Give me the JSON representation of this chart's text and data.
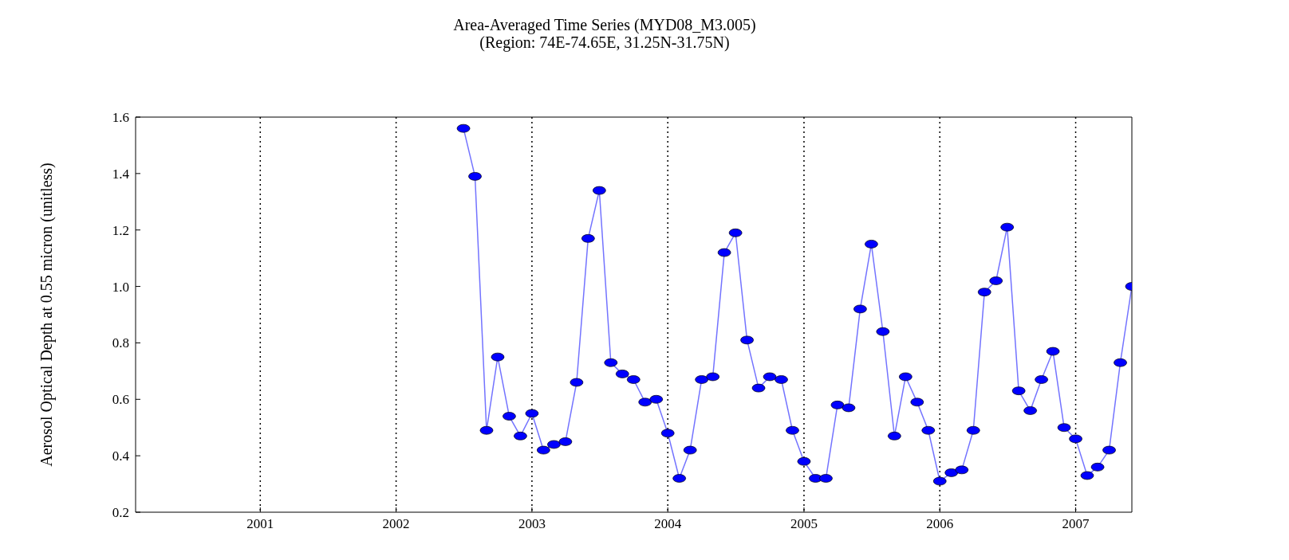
{
  "chart_data": {
    "type": "line",
    "title": "Area-Averaged Time Series (MYD08_M3.005)",
    "subtitle": "(Region: 74E-74.65E, 31.25N-31.75N)",
    "ylabel": "Aerosol Optical Depth at 0.55 micron  (unitless)",
    "x": [
      "2002-07",
      "2002-08",
      "2002-09",
      "2002-10",
      "2002-11",
      "2002-12",
      "2003-01",
      "2003-02",
      "2003-03",
      "2003-04",
      "2003-05",
      "2003-06",
      "2003-07",
      "2003-08",
      "2003-09",
      "2003-10",
      "2003-11",
      "2003-12",
      "2004-01",
      "2004-02",
      "2004-03",
      "2004-04",
      "2004-05",
      "2004-06",
      "2004-07",
      "2004-08",
      "2004-09",
      "2004-10",
      "2004-11",
      "2004-12",
      "2005-01",
      "2005-02",
      "2005-03",
      "2005-04",
      "2005-05",
      "2005-06",
      "2005-07",
      "2005-08",
      "2005-09",
      "2005-10",
      "2005-11",
      "2005-12",
      "2006-01",
      "2006-02",
      "2006-03",
      "2006-04",
      "2006-05",
      "2006-06",
      "2006-07",
      "2006-08",
      "2006-09",
      "2006-10",
      "2006-11",
      "2006-12",
      "2007-01",
      "2007-02",
      "2007-03",
      "2007-04",
      "2007-05",
      "2007-06"
    ],
    "series": [
      {
        "color": "#0000ff",
        "values": [
          1.56,
          1.39,
          0.49,
          0.75,
          0.54,
          0.47,
          0.55,
          0.42,
          0.44,
          0.45,
          0.66,
          1.17,
          1.34,
          0.73,
          0.69,
          0.67,
          0.59,
          0.6,
          0.48,
          0.32,
          0.42,
          0.67,
          0.68,
          1.12,
          1.19,
          0.81,
          0.64,
          0.68,
          0.67,
          0.49,
          0.38,
          0.32,
          0.32,
          0.58,
          0.57,
          0.92,
          1.15,
          0.84,
          0.47,
          0.68,
          0.59,
          0.49,
          0.31,
          0.34,
          0.35,
          0.49,
          0.98,
          1.02,
          1.21,
          0.63,
          0.56,
          0.67,
          0.77,
          0.5,
          0.46,
          0.33,
          0.36,
          0.42,
          0.73,
          1.0
        ]
      }
    ],
    "xlim": [
      "2000-02",
      "2007-06"
    ],
    "xticks": [
      {
        "value": "2001",
        "label": "2001"
      },
      {
        "value": "2002",
        "label": "2002"
      },
      {
        "value": "2003",
        "label": "2003"
      },
      {
        "value": "2004",
        "label": "2004"
      },
      {
        "value": "2005",
        "label": "2005"
      },
      {
        "value": "2006",
        "label": "2006"
      },
      {
        "value": "2007",
        "label": "2007"
      }
    ],
    "ylim": [
      0.2,
      1.6
    ],
    "yticks": [
      0.2,
      0.4,
      0.6,
      0.8,
      {
        "value": 1,
        "label": "1.0"
      },
      1.2,
      1.4,
      1.6
    ],
    "grid": "x",
    "line_style": "solid",
    "marker": "circle",
    "legend": false
  }
}
